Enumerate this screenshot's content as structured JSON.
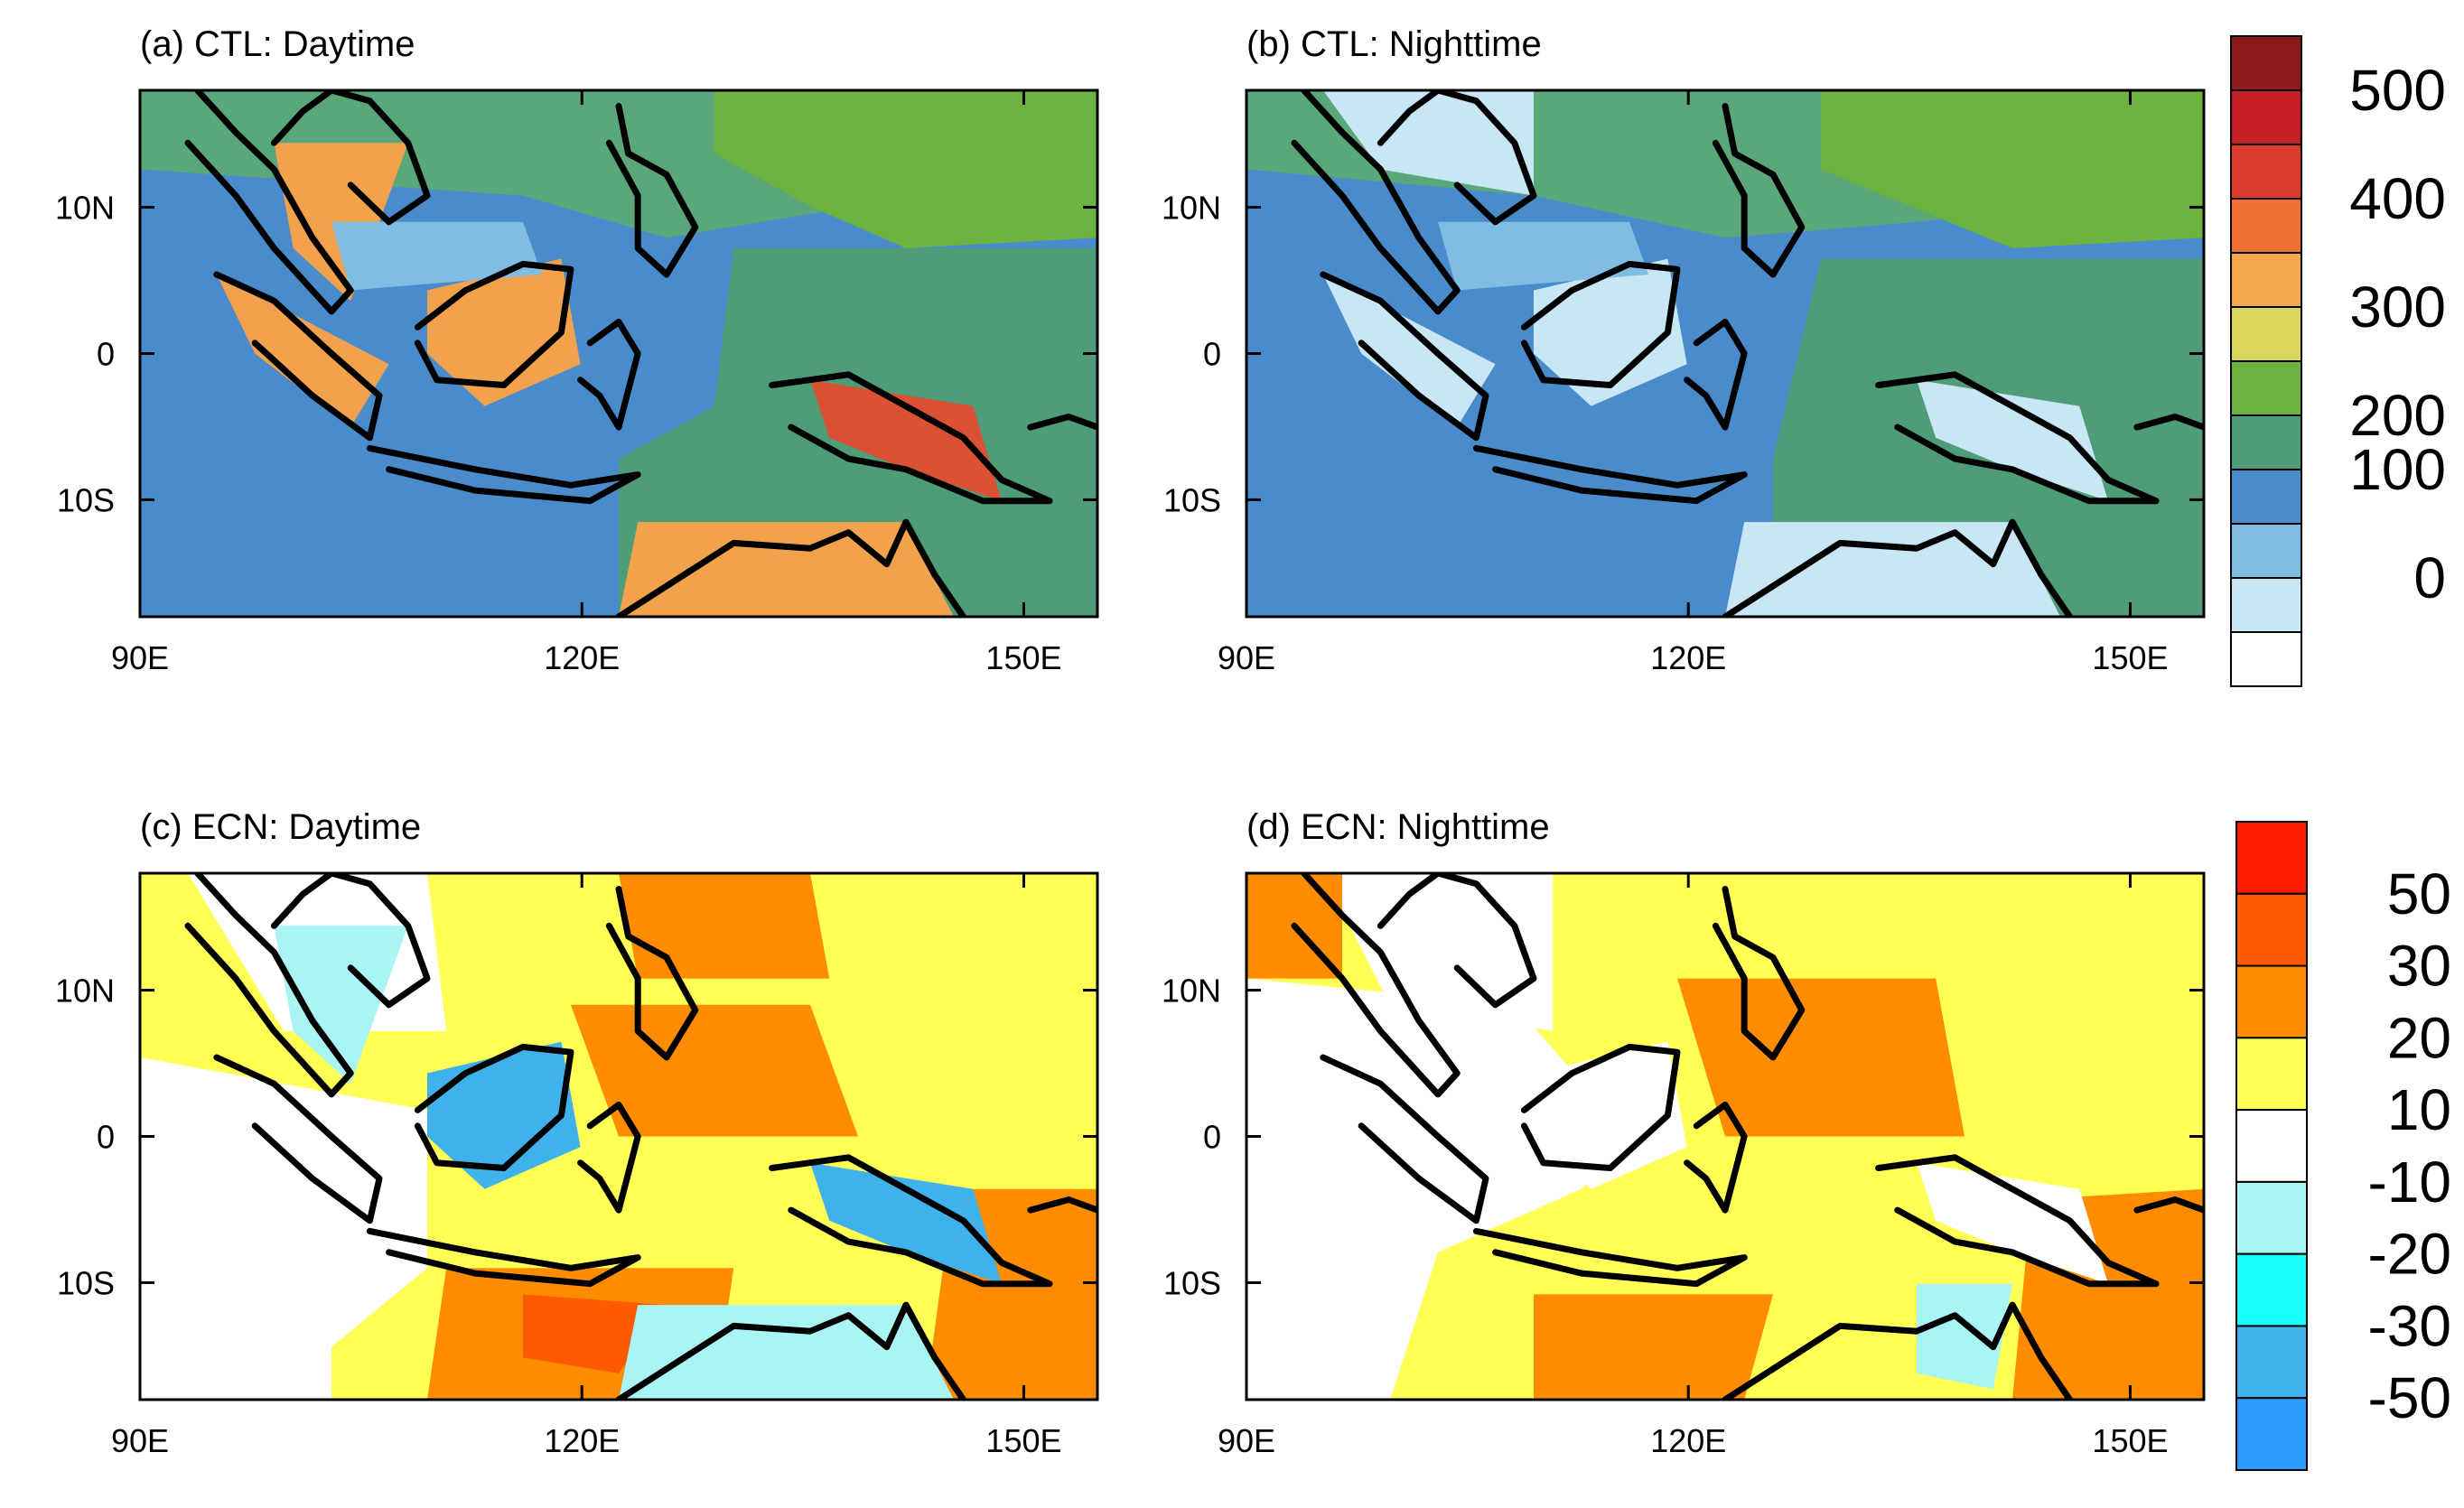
{
  "panels": [
    {
      "id": "a",
      "title": "(a) CTL: Daytime",
      "scale": "abs",
      "background": "#4a8ccb",
      "blobs": [
        {
          "c": "#5aa87a",
          "pts": [
            [
              0,
              0
            ],
            [
              1,
              0
            ],
            [
              1,
              0.18
            ],
            [
              0.75,
              0.22
            ],
            [
              0.55,
              0.28
            ],
            [
              0.4,
              0.2
            ],
            [
              0,
              0.15
            ]
          ]
        },
        {
          "c": "#6db33f",
          "pts": [
            [
              0.6,
              0
            ],
            [
              1,
              0
            ],
            [
              1,
              0.28
            ],
            [
              0.8,
              0.3
            ],
            [
              0.7,
              0.22
            ],
            [
              0.6,
              0.12
            ]
          ]
        },
        {
          "c": "#4e9c78",
          "pts": [
            [
              0.62,
              0.3
            ],
            [
              1,
              0.3
            ],
            [
              1,
              1
            ],
            [
              0.5,
              1
            ],
            [
              0.5,
              0.7
            ],
            [
              0.6,
              0.6
            ]
          ]
        },
        {
          "c": "#f2a24d",
          "pts": [
            [
              0.3,
              0.38
            ],
            [
              0.44,
              0.32
            ],
            [
              0.46,
              0.52
            ],
            [
              0.36,
              0.6
            ],
            [
              0.3,
              0.5
            ]
          ]
        },
        {
          "c": "#f2a24d",
          "pts": [
            [
              0.08,
              0.35
            ],
            [
              0.26,
              0.52
            ],
            [
              0.22,
              0.64
            ],
            [
              0.12,
              0.5
            ]
          ]
        },
        {
          "c": "#dc5033",
          "pts": [
            [
              0.7,
              0.55
            ],
            [
              0.87,
              0.6
            ],
            [
              0.9,
              0.78
            ],
            [
              0.8,
              0.72
            ],
            [
              0.72,
              0.66
            ]
          ]
        },
        {
          "c": "#f2a24d",
          "pts": [
            [
              0.52,
              0.82
            ],
            [
              0.8,
              0.82
            ],
            [
              0.85,
              1
            ],
            [
              0.5,
              1
            ]
          ]
        },
        {
          "c": "#f2a24d",
          "pts": [
            [
              0.14,
              0.1
            ],
            [
              0.28,
              0.1
            ],
            [
              0.22,
              0.4
            ],
            [
              0.16,
              0.3
            ]
          ]
        },
        {
          "c": "#7fbde3",
          "pts": [
            [
              0.2,
              0.25
            ],
            [
              0.4,
              0.25
            ],
            [
              0.42,
              0.35
            ],
            [
              0.22,
              0.38
            ]
          ]
        }
      ]
    },
    {
      "id": "b",
      "title": "(b) CTL: Nighttime",
      "scale": "abs",
      "background": "#4a8ccb",
      "blobs": [
        {
          "c": "#5aa87a",
          "pts": [
            [
              0,
              0
            ],
            [
              1,
              0
            ],
            [
              1,
              0.2
            ],
            [
              0.7,
              0.25
            ],
            [
              0.5,
              0.28
            ],
            [
              0.3,
              0.2
            ],
            [
              0,
              0.15
            ]
          ]
        },
        {
          "c": "#6db33f",
          "pts": [
            [
              0.6,
              0
            ],
            [
              1,
              0
            ],
            [
              1,
              0.28
            ],
            [
              0.8,
              0.3
            ],
            [
              0.6,
              0.15
            ]
          ]
        },
        {
          "c": "#4e9c78",
          "pts": [
            [
              0.6,
              0.32
            ],
            [
              1,
              0.32
            ],
            [
              1,
              1
            ],
            [
              0.55,
              1
            ],
            [
              0.55,
              0.7
            ]
          ]
        },
        {
          "c": "#c9e6f5",
          "pts": [
            [
              0.3,
              0.38
            ],
            [
              0.44,
              0.32
            ],
            [
              0.46,
              0.52
            ],
            [
              0.36,
              0.6
            ],
            [
              0.3,
              0.5
            ]
          ]
        },
        {
          "c": "#c9e6f5",
          "pts": [
            [
              0.08,
              0.35
            ],
            [
              0.26,
              0.52
            ],
            [
              0.22,
              0.64
            ],
            [
              0.12,
              0.5
            ]
          ]
        },
        {
          "c": "#c9e6f5",
          "pts": [
            [
              0.7,
              0.55
            ],
            [
              0.87,
              0.6
            ],
            [
              0.9,
              0.78
            ],
            [
              0.8,
              0.72
            ],
            [
              0.72,
              0.66
            ]
          ]
        },
        {
          "c": "#c9e6f5",
          "pts": [
            [
              0.52,
              0.82
            ],
            [
              0.8,
              0.82
            ],
            [
              0.85,
              1
            ],
            [
              0.5,
              1
            ]
          ]
        },
        {
          "c": "#c9e6f5",
          "pts": [
            [
              0.08,
              0
            ],
            [
              0.3,
              0
            ],
            [
              0.3,
              0.2
            ],
            [
              0.14,
              0.15
            ]
          ]
        },
        {
          "c": "#7fbde3",
          "pts": [
            [
              0.2,
              0.25
            ],
            [
              0.4,
              0.25
            ],
            [
              0.42,
              0.35
            ],
            [
              0.22,
              0.38
            ]
          ]
        }
      ]
    },
    {
      "id": "c",
      "title": "(c) ECN: Daytime",
      "scale": "diff",
      "background": "#ffff55",
      "blobs": [
        {
          "c": "#ffffff",
          "pts": [
            [
              0,
              0.35
            ],
            [
              0.3,
              0.45
            ],
            [
              0.3,
              0.75
            ],
            [
              0.2,
              0.9
            ],
            [
              0.2,
              1
            ],
            [
              0,
              1
            ]
          ]
        },
        {
          "c": "#ffffff",
          "pts": [
            [
              0.05,
              0
            ],
            [
              0.3,
              0
            ],
            [
              0.32,
              0.3
            ],
            [
              0.15,
              0.3
            ]
          ]
        },
        {
          "c": "#fd8c00",
          "pts": [
            [
              0.32,
              0.75
            ],
            [
              0.62,
              0.75
            ],
            [
              0.6,
              1
            ],
            [
              0.3,
              1
            ]
          ]
        },
        {
          "c": "#fd8c00",
          "pts": [
            [
              0.45,
              0.25
            ],
            [
              0.7,
              0.25
            ],
            [
              0.75,
              0.5
            ],
            [
              0.5,
              0.5
            ]
          ]
        },
        {
          "c": "#fd8c00",
          "pts": [
            [
              0.85,
              0.6
            ],
            [
              1,
              0.6
            ],
            [
              1,
              1
            ],
            [
              0.82,
              1
            ]
          ]
        },
        {
          "c": "#fd8c00",
          "pts": [
            [
              0.5,
              0
            ],
            [
              0.7,
              0
            ],
            [
              0.72,
              0.2
            ],
            [
              0.52,
              0.2
            ]
          ]
        },
        {
          "c": "#ff5a00",
          "pts": [
            [
              0.4,
              0.8
            ],
            [
              0.55,
              0.82
            ],
            [
              0.5,
              0.95
            ],
            [
              0.4,
              0.92
            ]
          ]
        },
        {
          "c": "#3fb2ec",
          "pts": [
            [
              0.3,
              0.38
            ],
            [
              0.44,
              0.32
            ],
            [
              0.46,
              0.52
            ],
            [
              0.36,
              0.6
            ],
            [
              0.3,
              0.5
            ]
          ]
        },
        {
          "c": "#3fb2ec",
          "pts": [
            [
              0.7,
              0.55
            ],
            [
              0.87,
              0.6
            ],
            [
              0.9,
              0.78
            ],
            [
              0.8,
              0.72
            ],
            [
              0.72,
              0.66
            ]
          ]
        },
        {
          "c": "#a9f5f5",
          "pts": [
            [
              0.52,
              0.82
            ],
            [
              0.8,
              0.82
            ],
            [
              0.85,
              1
            ],
            [
              0.5,
              1
            ]
          ]
        },
        {
          "c": "#a9f5f5",
          "pts": [
            [
              0.14,
              0.1
            ],
            [
              0.28,
              0.1
            ],
            [
              0.22,
              0.4
            ],
            [
              0.16,
              0.3
            ]
          ]
        }
      ]
    },
    {
      "id": "d",
      "title": "(d) ECN: Nighttime",
      "scale": "diff",
      "background": "#ffff55",
      "blobs": [
        {
          "c": "#ffffff",
          "pts": [
            [
              0,
              0.2
            ],
            [
              0.28,
              0.25
            ],
            [
              0.4,
              0.5
            ],
            [
              0.35,
              0.6
            ],
            [
              0.2,
              0.72
            ],
            [
              0.15,
              1
            ],
            [
              0,
              1
            ]
          ]
        },
        {
          "c": "#ffffff",
          "pts": [
            [
              0.08,
              0
            ],
            [
              0.32,
              0
            ],
            [
              0.32,
              0.3
            ],
            [
              0.15,
              0.25
            ]
          ]
        },
        {
          "c": "#ffffff",
          "pts": [
            [
              0.3,
              0.38
            ],
            [
              0.44,
              0.32
            ],
            [
              0.46,
              0.52
            ],
            [
              0.36,
              0.6
            ],
            [
              0.3,
              0.5
            ]
          ]
        },
        {
          "c": "#fd8c00",
          "pts": [
            [
              0.3,
              0.8
            ],
            [
              0.55,
              0.8
            ],
            [
              0.52,
              1
            ],
            [
              0.3,
              1
            ]
          ]
        },
        {
          "c": "#fd8c00",
          "pts": [
            [
              0.45,
              0.2
            ],
            [
              0.72,
              0.2
            ],
            [
              0.75,
              0.5
            ],
            [
              0.5,
              0.5
            ]
          ]
        },
        {
          "c": "#fd8c00",
          "pts": [
            [
              0.82,
              0.62
            ],
            [
              1,
              0.6
            ],
            [
              1,
              1
            ],
            [
              0.8,
              1
            ]
          ]
        },
        {
          "c": "#fd8c00",
          "pts": [
            [
              0,
              0
            ],
            [
              0.1,
              0
            ],
            [
              0.1,
              0.2
            ],
            [
              0,
              0.2
            ]
          ]
        },
        {
          "c": "#ffffff",
          "pts": [
            [
              0.7,
              0.55
            ],
            [
              0.87,
              0.6
            ],
            [
              0.9,
              0.78
            ],
            [
              0.8,
              0.72
            ],
            [
              0.72,
              0.66
            ]
          ]
        },
        {
          "c": "#a9f5f5",
          "pts": [
            [
              0.7,
              0.78
            ],
            [
              0.8,
              0.78
            ],
            [
              0.78,
              0.98
            ],
            [
              0.7,
              0.95
            ]
          ]
        }
      ]
    }
  ],
  "x_ticks": [
    "90E",
    "120E",
    "150E"
  ],
  "y_ticks": [
    "10N",
    "0",
    "10S"
  ],
  "colorbars": [
    {
      "id": "abs",
      "colors_top_to_bottom": [
        "#8b1a1a",
        "#c41f26",
        "#dc3c2f",
        "#f07033",
        "#f3a84a",
        "#d8d75b",
        "#6db33f",
        "#4e9c78",
        "#4a8ccb",
        "#7fbde3",
        "#c9e6f5",
        "#ffffff"
      ],
      "labels": [
        "500",
        "400",
        "300",
        "200",
        "100",
        "0"
      ]
    },
    {
      "id": "diff",
      "colors_top_to_bottom": [
        "#ff1a00",
        "#ff5a00",
        "#fd8c00",
        "#ffff55",
        "#ffffff",
        "#a9f5f5",
        "#1affff",
        "#3fb2ec",
        "#2a9cff"
      ],
      "labels": [
        "50",
        "30",
        "20",
        "10",
        "-10",
        "-20",
        "-30",
        "-50"
      ]
    }
  ]
}
